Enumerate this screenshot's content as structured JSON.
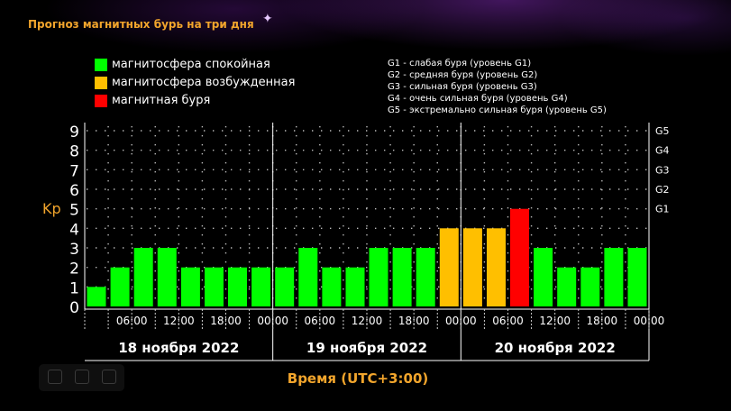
{
  "page": {
    "title": "Прогноз магнитных бурь на три дня"
  },
  "legend": {
    "items": [
      {
        "label": "магнитосфера спокойная",
        "color": "#00ff00"
      },
      {
        "label": "магнитосфера возбужденная",
        "color": "#ffbf00"
      },
      {
        "label": "магнитная буря",
        "color": "#ff0000"
      }
    ],
    "g_scale": [
      "G1 - слабая буря (уровень G1)",
      "G2 - средняя буря (уровень G2)",
      "G3 - сильная буря (уровень G3)",
      "G4 - очень сильная буря (уровень G4)",
      "G5 - экстремально сильная буря (уровень G5)"
    ]
  },
  "chart_data": {
    "type": "bar",
    "ylabel": "Kp",
    "xlabel": "Время (UTC+3:00)",
    "ylim": [
      0,
      9
    ],
    "y_ticks": [
      "0",
      "1",
      "2",
      "3",
      "4",
      "5",
      "6",
      "7",
      "8",
      "9"
    ],
    "right_ticks": [
      {
        "value": 5,
        "label": "G1"
      },
      {
        "value": 6,
        "label": "G2"
      },
      {
        "value": 7,
        "label": "G3"
      },
      {
        "value": 8,
        "label": "G4"
      },
      {
        "value": 9,
        "label": "G5"
      }
    ],
    "x_tick_labels": [
      "06:00",
      "12:00",
      "18:00",
      "00:00",
      "06:00",
      "12:00",
      "18:00",
      "00:00",
      "06:00",
      "12:00",
      "18:00",
      "00:00"
    ],
    "days": [
      "18 ноября 2022",
      "19 ноября 2022",
      "20 ноября 2022"
    ],
    "grid": true,
    "values": [
      1,
      2,
      3,
      3,
      2,
      2,
      2,
      2,
      2,
      3,
      2,
      2,
      3,
      3,
      3,
      4,
      4,
      4,
      5,
      3,
      2,
      2,
      3,
      3
    ],
    "colors": {
      "calm": "#00ff00",
      "excited": "#ffbf00",
      "storm": "#ff0000"
    }
  }
}
